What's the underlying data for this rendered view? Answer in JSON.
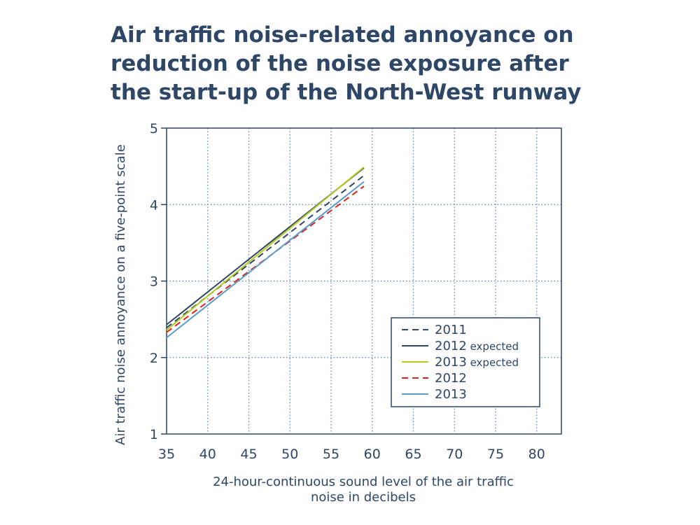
{
  "chart_data": {
    "type": "line",
    "title_lines": [
      "Air traffic noise-related annoyance on",
      "reduction of the noise exposure after",
      "the start-up of the North-West runway"
    ],
    "xlabel_lines": [
      "24-hour-continuous sound level of the air traffic",
      "noise in decibels"
    ],
    "ylabel": "Air traffic noise annoyance on a five-point scale",
    "xlim": [
      35,
      83
    ],
    "ylim": [
      1,
      5
    ],
    "xticks": [
      35,
      40,
      45,
      50,
      55,
      60,
      65,
      70,
      75,
      80
    ],
    "yticks": [
      1,
      2,
      3,
      4,
      5
    ],
    "grid": true,
    "legend_position": "lower-right",
    "series": [
      {
        "name": "2011",
        "suffix": "",
        "color": "#2e4766",
        "dash": "dashed",
        "x": [
          35,
          59
        ],
        "y": [
          2.39,
          4.38
        ]
      },
      {
        "name": "2012",
        "suffix": " expected",
        "color": "#2e4766",
        "dash": "solid",
        "x": [
          35,
          59
        ],
        "y": [
          2.43,
          4.48
        ]
      },
      {
        "name": "2013",
        "suffix": " expected",
        "color": "#b6c81e",
        "dash": "solid",
        "x": [
          35,
          59
        ],
        "y": [
          2.36,
          4.49
        ]
      },
      {
        "name": "2012",
        "suffix": "",
        "color": "#e02020",
        "dash": "dashed",
        "x": [
          35,
          59
        ],
        "y": [
          2.33,
          4.24
        ]
      },
      {
        "name": "2013",
        "suffix": "",
        "color": "#5a9ecb",
        "dash": "solid",
        "x": [
          35,
          59
        ],
        "y": [
          2.26,
          4.3
        ]
      }
    ]
  }
}
